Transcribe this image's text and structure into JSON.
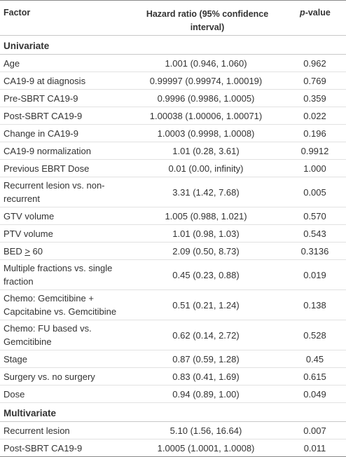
{
  "headers": {
    "factor": "Factor",
    "hr": "Hazard ratio (95% confidence interval)",
    "p_italic": "p",
    "p_rest": "-value"
  },
  "sections": {
    "univariate": "Univariate",
    "multivariate": "Multivariate"
  },
  "univariate_rows": [
    {
      "factor": "Age",
      "hr": "1.001 (0.946, 1.060)",
      "p": "0.962"
    },
    {
      "factor": "CA19-9 at diagnosis",
      "hr": "0.99997 (0.99974, 1.00019)",
      "p": "0.769"
    },
    {
      "factor": "Pre-SBRT CA19-9",
      "hr": "0.9996 (0.9986, 1.0005)",
      "p": "0.359"
    },
    {
      "factor": "Post-SBRT CA19-9",
      "hr": "1.00038 (1.00006, 1.00071)",
      "p": "0.022"
    },
    {
      "factor": "Change in CA19-9",
      "hr": "1.0003 (0.9998, 1.0008)",
      "p": "0.196"
    },
    {
      "factor": "CA19-9 normalization",
      "hr": "1.01 (0.28, 3.61)",
      "p": "0.9912"
    },
    {
      "factor": "Previous EBRT Dose",
      "hr": "0.01 (0.00, infinity)",
      "p": "1.000"
    },
    {
      "factor": "Recurrent lesion vs. non-recurrent",
      "hr": "3.31 (1.42, 7.68)",
      "p": "0.005"
    },
    {
      "factor": "GTV volume",
      "hr": "1.005 (0.988, 1.021)",
      "p": "0.570"
    },
    {
      "factor": "PTV volume",
      "hr": "1.01 (0.98, 1.03)",
      "p": "0.543"
    },
    {
      "factor_prefix": "BED ",
      "factor_sym": ">",
      "factor_suffix": " 60",
      "hr": "2.09 (0.50, 8.73)",
      "p": "0.3136"
    },
    {
      "factor": "Multiple fractions vs. single fraction",
      "hr": "0.45 (0.23, 0.88)",
      "p": "0.019"
    },
    {
      "factor": "Chemo: Gemcitibine + Capcitabine vs. Gemcitibine",
      "hr": "0.51 (0.21, 1.24)",
      "p": "0.138"
    },
    {
      "factor": "Chemo: FU based vs. Gemcitibine",
      "hr": "0.62 (0.14, 2.72)",
      "p": "0.528"
    },
    {
      "factor": "Stage",
      "hr": "0.87 (0.59, 1.28)",
      "p": "0.45"
    },
    {
      "factor": "Surgery vs. no surgery",
      "hr": "0.83 (0.41, 1.69)",
      "p": "0.615"
    },
    {
      "factor": "Dose",
      "hr": "0.94 (0.89, 1.00)",
      "p": "0.049"
    }
  ],
  "multivariate_rows": [
    {
      "factor": "Recurrent lesion",
      "hr": "5.10 (1.56, 16.64)",
      "p": "0.007"
    },
    {
      "factor": "Post-SBRT CA19-9",
      "hr": "1.0005 (1.0001, 1.0008)",
      "p": "0.011"
    }
  ]
}
